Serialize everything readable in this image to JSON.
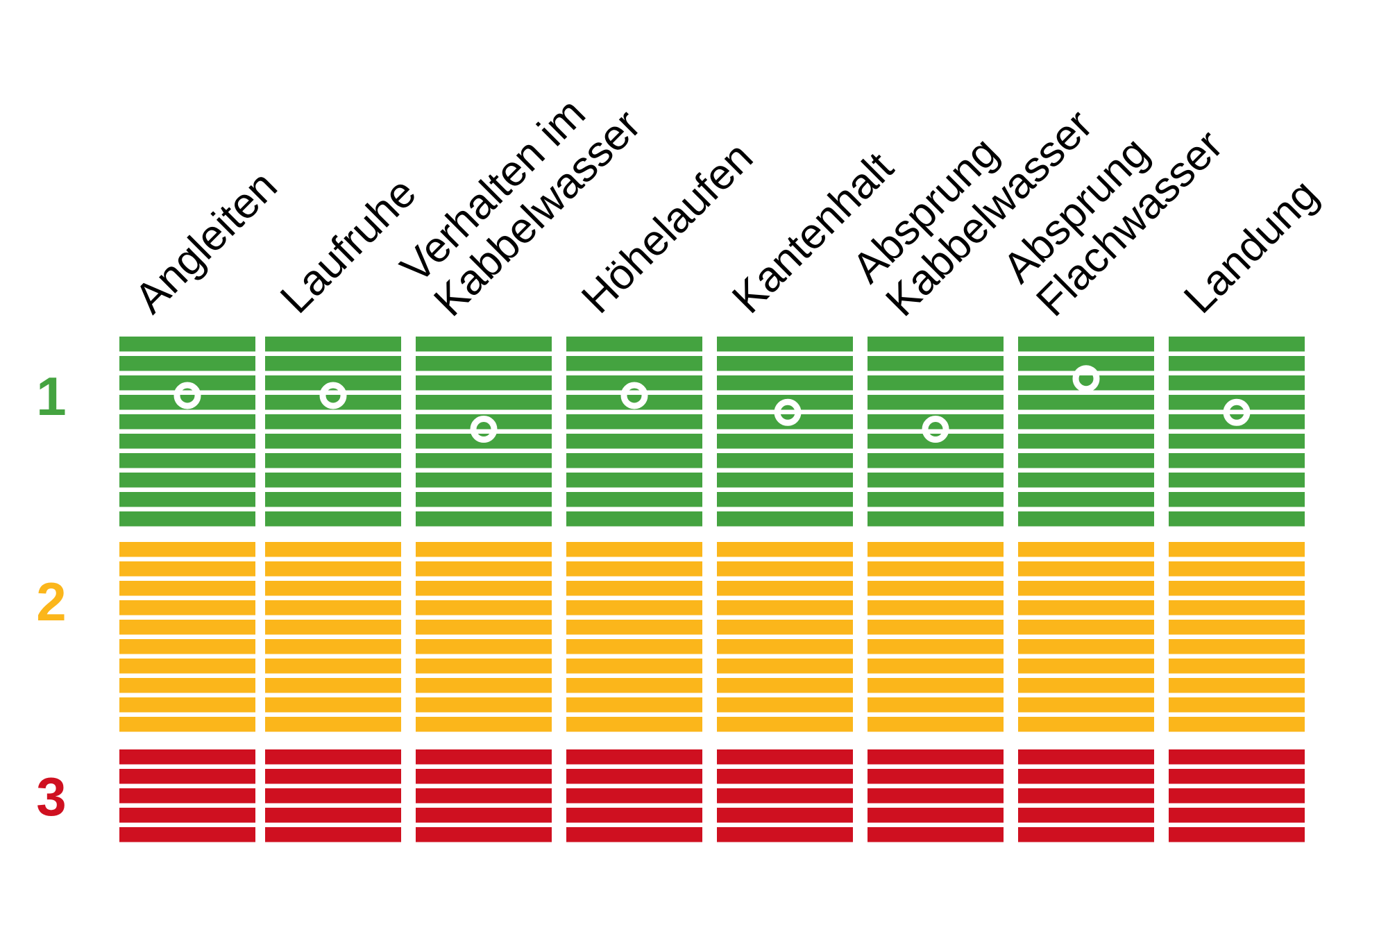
{
  "chart_data": {
    "type": "heatmap",
    "categories": [
      [
        "Angleiten"
      ],
      [
        "Laufruhe"
      ],
      [
        "Verhalten im",
        "Kabbelwasser"
      ],
      [
        "Höhelaufen"
      ],
      [
        "Kantenhalt"
      ],
      [
        "Absprung",
        "Kabbelwasser"
      ],
      [
        "Absprung",
        "Flachwasser"
      ],
      [
        "Landung"
      ]
    ],
    "grades": [
      {
        "label": "1",
        "color": "#44a340",
        "stripes": 10
      },
      {
        "label": "2",
        "color": "#fbb61b",
        "stripes": 10
      },
      {
        "label": "3",
        "color": "#cf1020",
        "stripes": 5
      }
    ],
    "values": [
      1.35,
      1.35,
      1.55,
      1.35,
      1.45,
      1.55,
      1.25,
      1.45
    ],
    "scale_range": [
      1,
      4
    ],
    "marker": "open-circle-white"
  }
}
